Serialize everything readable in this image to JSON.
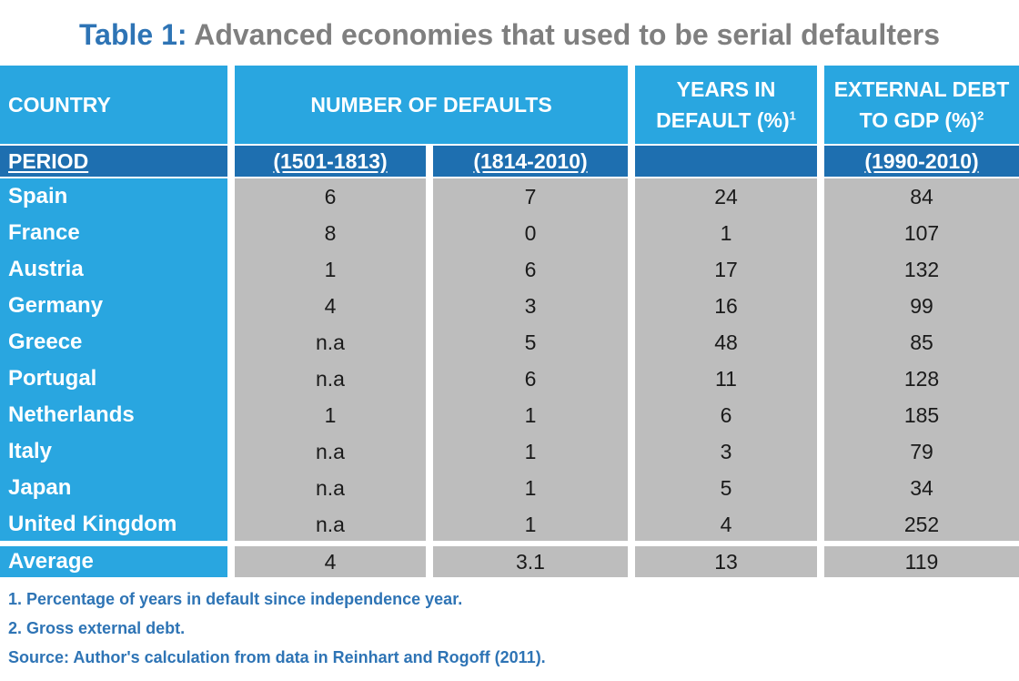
{
  "title": {
    "label": "Table 1:",
    "text": "Advanced economies that used to be serial defaulters"
  },
  "header": {
    "country": "COUNTRY",
    "number_of_defaults": "NUMBER OF DEFAULTS",
    "years_in_default_line1": "YEARS IN",
    "years_in_default_line2": "DEFAULT (%)",
    "years_in_default_sup": "1",
    "external_debt_line1": "EXTERNAL DEBT",
    "external_debt_line2": "TO GDP (%)",
    "external_debt_sup": "2"
  },
  "period": {
    "label": "PERIOD",
    "col1": "(1501-1813)",
    "col2": "(1814-2010)",
    "col3": "",
    "col4": "(1990-2010)"
  },
  "rows": [
    {
      "country": "Spain",
      "d1": "6",
      "d2": "7",
      "years": "24",
      "debt": "84"
    },
    {
      "country": "France",
      "d1": "8",
      "d2": "0",
      "years": "1",
      "debt": "107"
    },
    {
      "country": "Austria",
      "d1": "1",
      "d2": "6",
      "years": "17",
      "debt": "132"
    },
    {
      "country": "Germany",
      "d1": "4",
      "d2": "3",
      "years": "16",
      "debt": "99"
    },
    {
      "country": "Greece",
      "d1": "n.a",
      "d2": "5",
      "years": "48",
      "debt": "85"
    },
    {
      "country": "Portugal",
      "d1": "n.a",
      "d2": "6",
      "years": "11",
      "debt": "128"
    },
    {
      "country": "Netherlands",
      "d1": "1",
      "d2": "1",
      "years": "6",
      "debt": "185"
    },
    {
      "country": "Italy",
      "d1": "n.a",
      "d2": "1",
      "years": "3",
      "debt": "79"
    },
    {
      "country": "Japan",
      "d1": "n.a",
      "d2": "1",
      "years": "5",
      "debt": "34"
    },
    {
      "country": "United Kingdom",
      "d1": "n.a",
      "d2": "1",
      "years": "4",
      "debt": "252"
    }
  ],
  "average": {
    "country": "Average",
    "d1": "4",
    "d2": "3.1",
    "years": "13",
    "debt": "119"
  },
  "footnotes": {
    "note1": "1. Percentage of years in default since independence year.",
    "note2": "2. Gross external debt.",
    "source": "Source: Author's calculation from data in Reinhart and Rogoff (2011)."
  },
  "colors": {
    "header_blue": "#29A6E0",
    "period_dark_blue": "#1E6FB0",
    "cell_gray": "#BDBDBD",
    "title_blue": "#2E74B5",
    "title_gray": "#7F7F7F"
  }
}
